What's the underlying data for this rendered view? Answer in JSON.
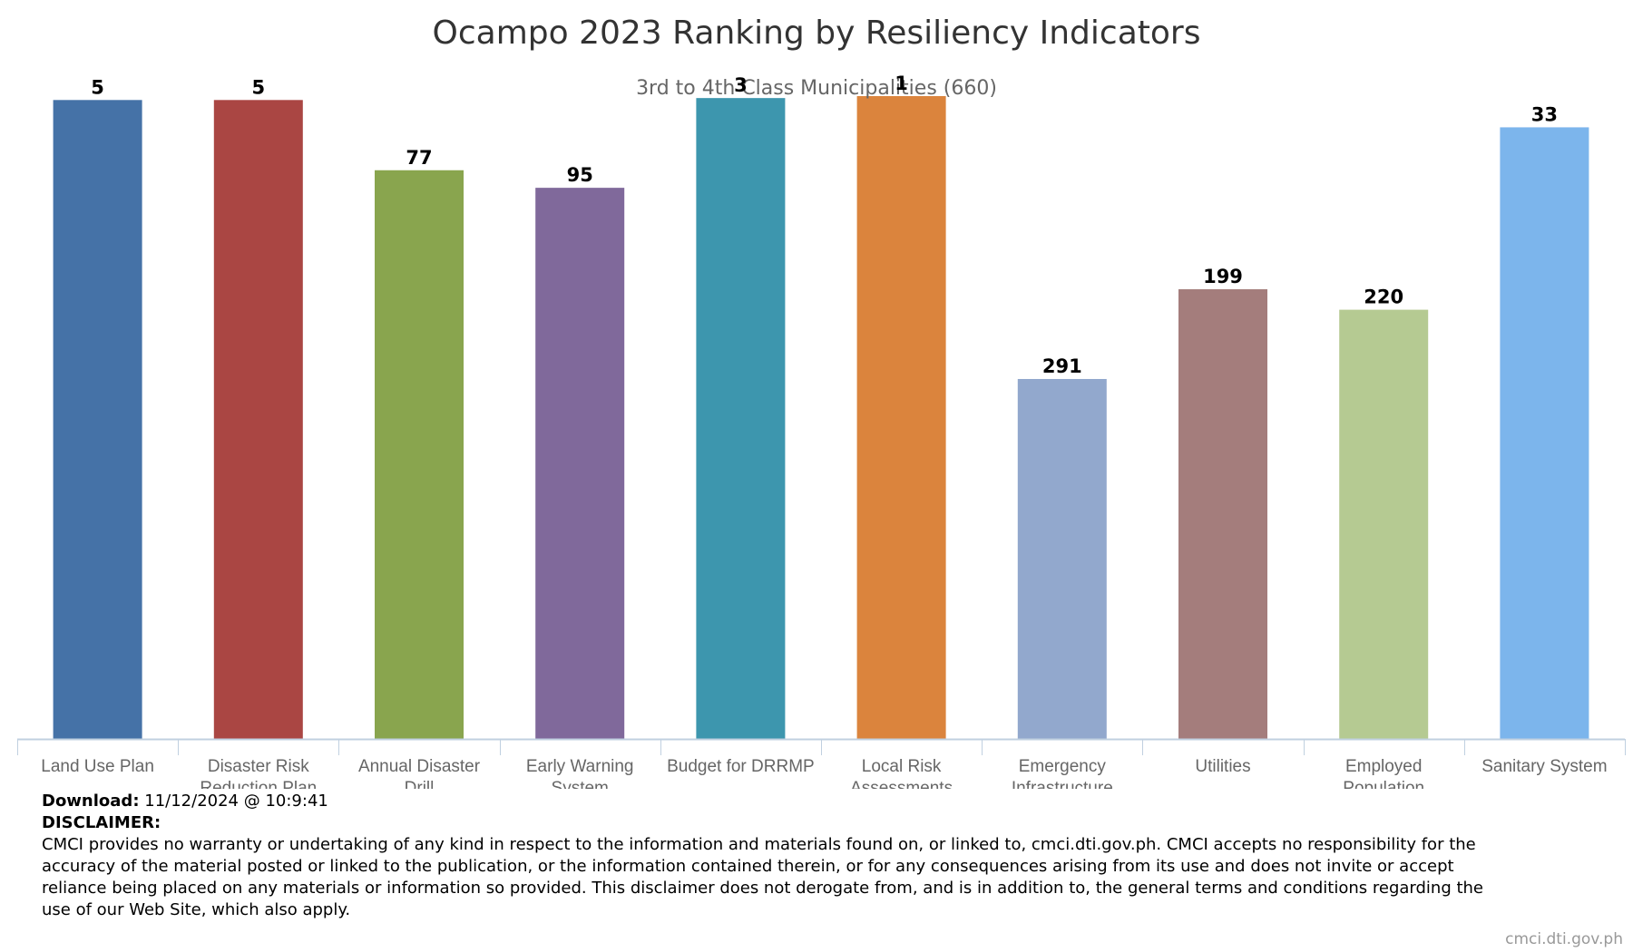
{
  "chart_data": {
    "type": "bar",
    "title": "Ocampo 2023 Ranking by Resiliency Indicators",
    "subtitle": "3rd to 4th Class Municipalities (660)",
    "categories": [
      [
        "Land Use Plan"
      ],
      [
        "Disaster Risk",
        "Reduction Plan"
      ],
      [
        "Annual Disaster",
        "Drill"
      ],
      [
        "Early Warning",
        "System"
      ],
      [
        "Budget for DRRMP"
      ],
      [
        "Local Risk",
        "Assessments"
      ],
      [
        "Emergency",
        "Infrastructure"
      ],
      [
        "Utilities"
      ],
      [
        "Employed",
        "Population"
      ],
      [
        "Sanitary System"
      ]
    ],
    "values": [
      5,
      5,
      77,
      95,
      3,
      1,
      291,
      199,
      220,
      33
    ],
    "colors": [
      "#4572A7",
      "#AA4643",
      "#89A54E",
      "#80699B",
      "#3D96AE",
      "#DB843D",
      "#92A8CD",
      "#A47D7C",
      "#B5CA92",
      "#7CB5EC"
    ],
    "scale": "reversed rank (1 = tallest bar)",
    "ylim": [
      660,
      1
    ],
    "grid": false,
    "legend": "none"
  },
  "footer": {
    "download_label": "Download:",
    "download_value": "11/12/2024 @ 10:9:41",
    "disclaimer_label": "DISCLAIMER:",
    "disclaimer_text": "CMCI provides no warranty or undertaking of any kind in respect to the information and materials found on, or linked to, cmci.dti.gov.ph. CMCI accepts no responsibility for the accuracy of the material posted or linked to the publication, or the information contained therein, or for any consequences arising from its use and does not invite or accept reliance being placed on any materials or information so provided. This disclaimer does not derogate from, and is in addition to, the general terms and conditions regarding the use of our Web Site, which also apply.",
    "credit": "cmci.dti.gov.ph"
  }
}
